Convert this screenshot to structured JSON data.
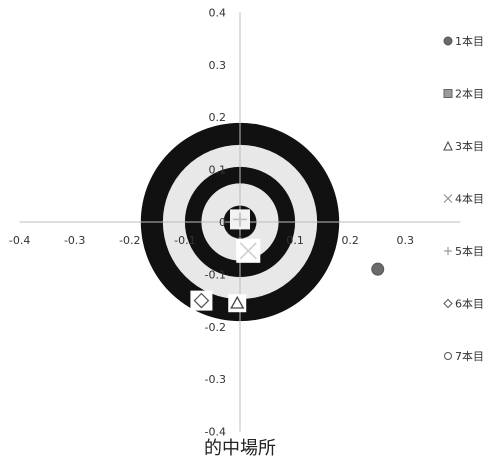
{
  "chart_data": {
    "type": "scatter",
    "title": "的中場所",
    "xlim": [
      -0.4,
      0.3
    ],
    "ylim": [
      -0.4,
      0.4
    ],
    "x_ticks": [
      "-0.4",
      "-0.3",
      "-0.2",
      "-0.1",
      "0",
      "0.1",
      "0.2",
      "0.3"
    ],
    "y_ticks": [
      "0.4",
      "0.3",
      "0.2",
      "0.1",
      "0",
      "-0.1",
      "-0.2",
      "-0.3",
      "-0.4"
    ],
    "grid": false,
    "legend_position": "right",
    "target": {
      "rings_outer_radius": [
        0.18,
        0.14,
        0.1,
        0.07,
        0.03
      ],
      "colors": [
        "#111111",
        "#e8e8e8",
        "#111111",
        "#e8e8e8",
        "#111111"
      ]
    },
    "series": [
      {
        "name": "1本目",
        "marker": "circle",
        "color": "#6b6b6b",
        "x": [
          0.25
        ],
        "y": [
          -0.09
        ]
      },
      {
        "name": "2本目",
        "marker": "square",
        "color": "#9a9a9a",
        "x": [],
        "y": []
      },
      {
        "name": "3本目",
        "marker": "triangle",
        "color": "#ffffff",
        "x": [
          -0.005
        ],
        "y": [
          -0.155
        ]
      },
      {
        "name": "4本目",
        "marker": "x",
        "color": "#cfcfcf",
        "x": [
          0.015
        ],
        "y": [
          -0.055
        ]
      },
      {
        "name": "5本目",
        "marker": "plus",
        "color": "#bdbdbd",
        "x": [
          0.0
        ],
        "y": [
          0.005
        ]
      },
      {
        "name": "6本目",
        "marker": "diamond",
        "color": "#ffffff",
        "x": [
          -0.07
        ],
        "y": [
          -0.15
        ]
      },
      {
        "name": "7本目",
        "marker": "open-circle",
        "color": "#ffffff",
        "x": [],
        "y": []
      }
    ]
  }
}
